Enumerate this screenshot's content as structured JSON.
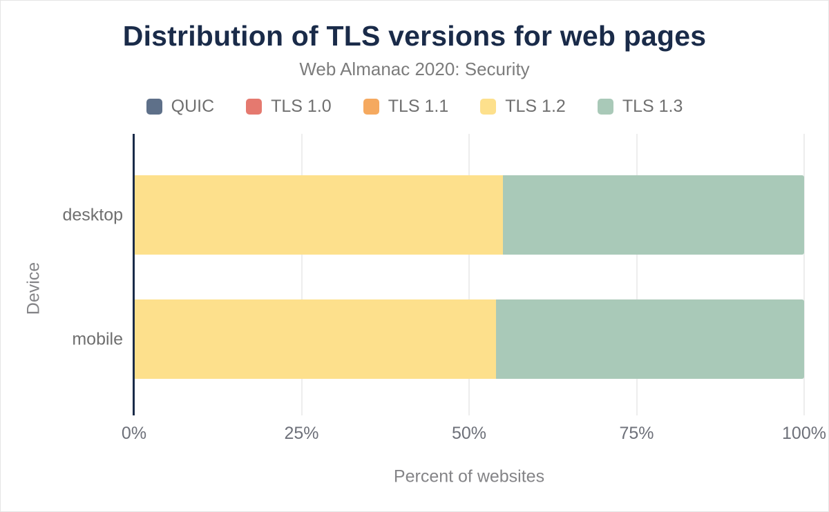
{
  "header": {
    "title": "Distribution of TLS versions for web pages",
    "subtitle": "Web Almanac 2020: Security"
  },
  "chart_data": {
    "type": "bar",
    "orientation": "horizontal",
    "stacked": true,
    "title": "Distribution of TLS versions for web pages",
    "subtitle": "Web Almanac 2020: Security",
    "xlabel": "Percent of websites",
    "ylabel": "Device",
    "categories": [
      "desktop",
      "mobile"
    ],
    "series": [
      {
        "name": "QUIC",
        "color": "#5e7089",
        "values": [
          0,
          0
        ]
      },
      {
        "name": "TLS 1.0",
        "color": "#e5796f",
        "values": [
          0,
          0
        ]
      },
      {
        "name": "TLS 1.1",
        "color": "#f5a95f",
        "values": [
          0,
          0
        ]
      },
      {
        "name": "TLS 1.2",
        "color": "#fde08c",
        "values": [
          55,
          54
        ]
      },
      {
        "name": "TLS 1.3",
        "color": "#a9c9b8",
        "values": [
          45,
          46
        ]
      }
    ],
    "xlim": [
      0,
      100
    ],
    "xticks": [
      0,
      25,
      50,
      75,
      100
    ],
    "xtick_labels": [
      "0%",
      "25%",
      "50%",
      "75%",
      "100%"
    ],
    "grid": true,
    "legend_position": "top",
    "colors": {
      "title": "#1a2b49",
      "axis_line": "#1a2b49",
      "gridline": "#ededed",
      "text_gray": "#6f6f6f"
    }
  }
}
